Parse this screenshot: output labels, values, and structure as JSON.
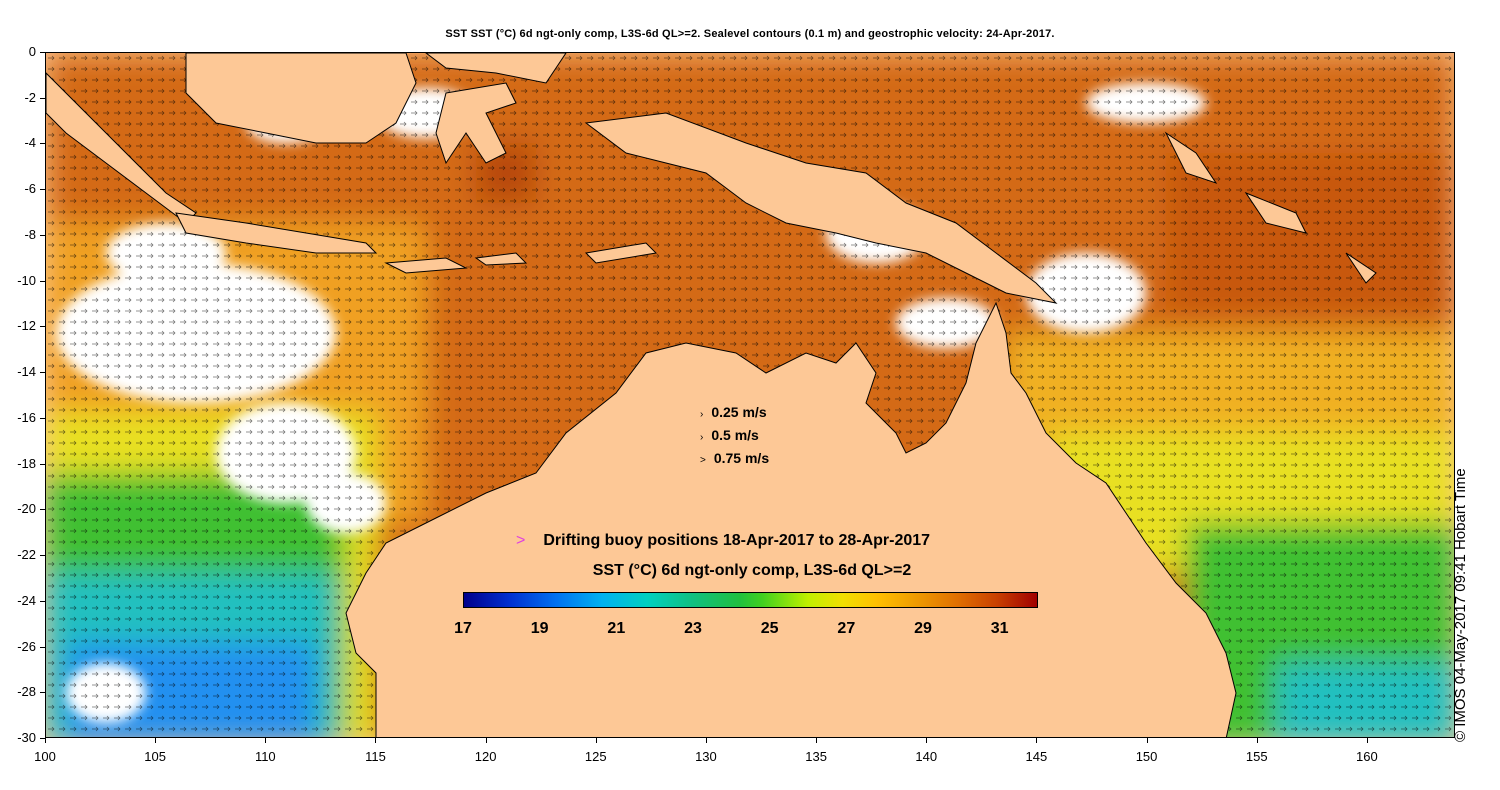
{
  "title": "SST SST (°C) 6d ngt-only comp, L3S-6d QL>=2. Sealevel contours (0.1 m) and geostrophic velocity: 24-Apr-2017.",
  "axes": {
    "y_ticks": [
      "0",
      "-2",
      "-4",
      "-6",
      "-8",
      "-10",
      "-12",
      "-14",
      "-16",
      "-18",
      "-20",
      "-22",
      "-24",
      "-26",
      "-28",
      "-30"
    ],
    "x_ticks": [
      "100",
      "105",
      "110",
      "115",
      "120",
      "125",
      "130",
      "135",
      "140",
      "145",
      "150",
      "155",
      "160"
    ],
    "lon_range": [
      100,
      164
    ],
    "lat_range": [
      -30,
      0
    ]
  },
  "velocity_legend": {
    "rows": [
      {
        "arrow": "›",
        "label": "0.25 m/s"
      },
      {
        "arrow": "›",
        "label": "0.5 m/s"
      },
      {
        "arrow": ">",
        "label": "0.75 m/s"
      }
    ]
  },
  "buoy_legend": {
    "marker": ">",
    "label": "Drifting buoy positions 18-Apr-2017 to 28-Apr-2017",
    "marker_color": "#e040e0"
  },
  "colorbar": {
    "title": "SST (°C) 6d ngt-only comp, L3S-6d QL>=2",
    "ticks": [
      "17",
      "19",
      "21",
      "23",
      "25",
      "27",
      "29",
      "31"
    ],
    "range": [
      17,
      32
    ]
  },
  "credit": "© IMOS 04-May-2017 09:41 Hobart Time",
  "colors": {
    "land": "#fdc896",
    "sst_warm": "#d46a14",
    "sst_hot": "#b84810",
    "sst_mid": "#f0a020",
    "sst_yellow": "#e8e020",
    "sst_green": "#40c030",
    "sst_cyan": "#20c0c0",
    "sst_blue": "#2090f0",
    "cloud": "#ffffff"
  }
}
